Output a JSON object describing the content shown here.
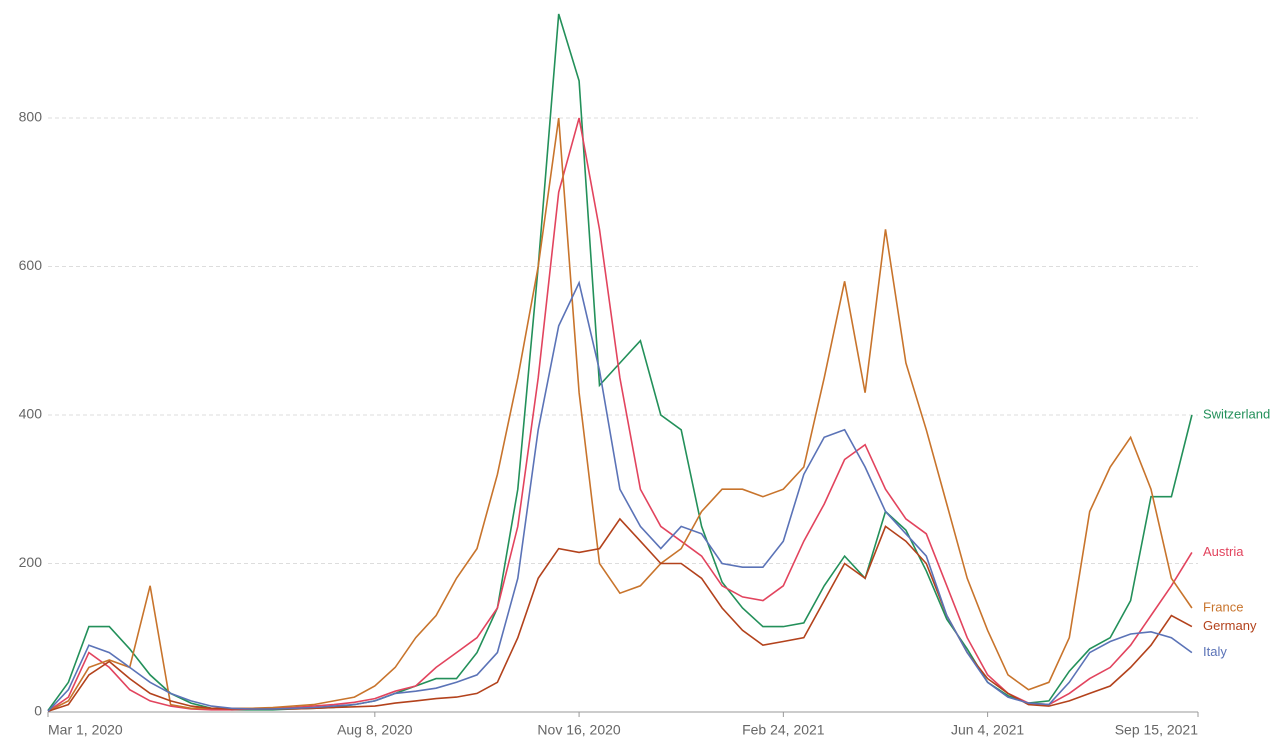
{
  "chart_data": {
    "type": "line",
    "x": [
      "2020-03-01",
      "2020-03-11",
      "2020-03-21",
      "2020-03-31",
      "2020-04-10",
      "2020-04-20",
      "2020-04-30",
      "2020-05-10",
      "2020-05-20",
      "2020-05-30",
      "2020-06-09",
      "2020-06-19",
      "2020-06-29",
      "2020-07-09",
      "2020-07-19",
      "2020-07-29",
      "2020-08-08",
      "2020-08-18",
      "2020-08-28",
      "2020-09-07",
      "2020-09-17",
      "2020-09-27",
      "2020-10-07",
      "2020-10-17",
      "2020-10-27",
      "2020-11-06",
      "2020-11-16",
      "2020-11-26",
      "2020-12-06",
      "2020-12-16",
      "2020-12-26",
      "2021-01-05",
      "2021-01-15",
      "2021-01-25",
      "2021-02-04",
      "2021-02-14",
      "2021-02-24",
      "2021-03-06",
      "2021-03-16",
      "2021-03-26",
      "2021-04-05",
      "2021-04-15",
      "2021-04-25",
      "2021-05-05",
      "2021-05-15",
      "2021-05-25",
      "2021-06-04",
      "2021-06-14",
      "2021-06-24",
      "2021-07-04",
      "2021-07-14",
      "2021-07-24",
      "2021-08-03",
      "2021-08-13",
      "2021-08-23",
      "2021-09-02",
      "2021-09-12"
    ],
    "series": [
      {
        "name": "Switzerland",
        "color": "#23905a",
        "values": [
          2,
          40,
          115,
          115,
          85,
          50,
          25,
          12,
          5,
          3,
          3,
          3,
          4,
          5,
          6,
          10,
          15,
          25,
          35,
          45,
          45,
          80,
          140,
          300,
          600,
          940,
          850,
          440,
          470,
          500,
          400,
          380,
          250,
          175,
          140,
          115,
          115,
          120,
          170,
          210,
          180,
          270,
          245,
          190,
          125,
          85,
          40,
          22,
          12,
          15,
          55,
          85,
          100,
          150,
          290,
          290,
          400
        ]
      },
      {
        "name": "Austria",
        "color": "#e2445e",
        "values": [
          1,
          20,
          80,
          60,
          30,
          15,
          8,
          4,
          3,
          3,
          4,
          5,
          6,
          8,
          10,
          13,
          18,
          28,
          35,
          60,
          80,
          100,
          140,
          250,
          450,
          700,
          800,
          650,
          450,
          300,
          250,
          230,
          210,
          170,
          155,
          150,
          170,
          230,
          280,
          340,
          360,
          300,
          260,
          240,
          170,
          100,
          50,
          25,
          12,
          10,
          25,
          45,
          60,
          90,
          130,
          170,
          215
        ]
      },
      {
        "name": "France",
        "color": "#c8742c",
        "values": [
          1,
          15,
          60,
          70,
          60,
          170,
          10,
          5,
          5,
          5,
          5,
          6,
          8,
          10,
          15,
          20,
          35,
          60,
          100,
          130,
          180,
          220,
          320,
          450,
          600,
          800,
          430,
          200,
          160,
          170,
          200,
          220,
          270,
          300,
          300,
          290,
          300,
          330,
          450,
          580,
          430,
          650,
          470,
          380,
          280,
          180,
          110,
          50,
          30,
          40,
          100,
          270,
          330,
          370,
          300,
          180,
          140
        ]
      },
      {
        "name": "Germany",
        "color": "#b3421c",
        "values": [
          1,
          10,
          50,
          68,
          45,
          25,
          15,
          8,
          5,
          4,
          4,
          4,
          4,
          5,
          6,
          7,
          8,
          12,
          15,
          18,
          20,
          25,
          40,
          100,
          180,
          220,
          215,
          220,
          260,
          230,
          200,
          200,
          180,
          140,
          110,
          90,
          95,
          100,
          150,
          200,
          180,
          250,
          230,
          200,
          130,
          80,
          45,
          25,
          10,
          8,
          15,
          25,
          35,
          60,
          90,
          130,
          115
        ]
      },
      {
        "name": "Italy",
        "color": "#5b73b7",
        "values": [
          1,
          30,
          90,
          80,
          60,
          40,
          25,
          15,
          8,
          5,
          4,
          4,
          5,
          6,
          8,
          10,
          15,
          25,
          28,
          32,
          40,
          50,
          80,
          180,
          380,
          520,
          578,
          460,
          300,
          250,
          220,
          250,
          240,
          200,
          195,
          195,
          230,
          320,
          370,
          380,
          330,
          270,
          240,
          210,
          130,
          80,
          40,
          20,
          12,
          10,
          40,
          80,
          95,
          105,
          108,
          100,
          80
        ]
      }
    ],
    "xlim": [
      "2020-03-01",
      "2021-09-15"
    ],
    "xticks": [
      {
        "value": "2020-03-01",
        "label": "Mar 1, 2020"
      },
      {
        "value": "2020-08-08",
        "label": "Aug 8, 2020"
      },
      {
        "value": "2020-11-16",
        "label": "Nov 16, 2020"
      },
      {
        "value": "2021-02-24",
        "label": "Feb 24, 2021"
      },
      {
        "value": "2021-06-04",
        "label": "Jun 4, 2021"
      },
      {
        "value": "2021-09-15",
        "label": "Sep 15, 2021"
      }
    ],
    "ylim": [
      0,
      950
    ],
    "yticks": [
      0,
      200,
      400,
      600,
      800
    ],
    "grid": true
  }
}
